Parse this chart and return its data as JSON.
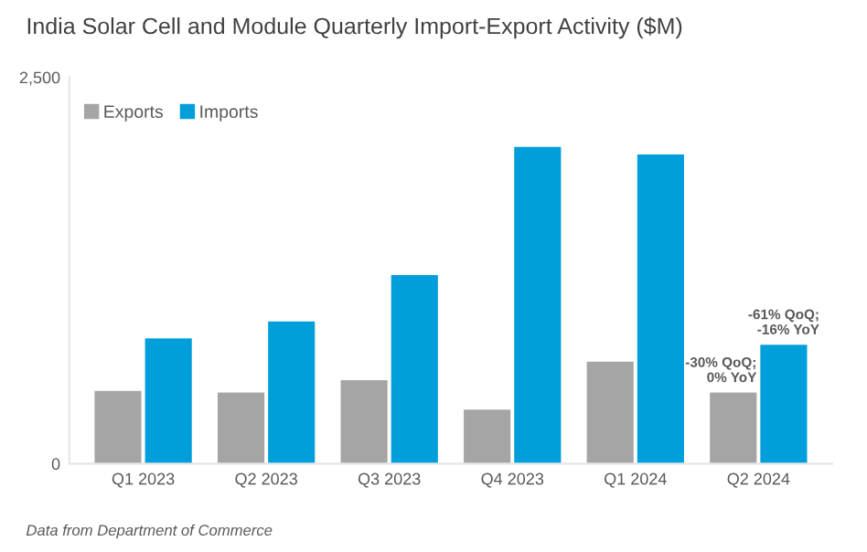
{
  "chart_data": {
    "type": "bar",
    "title": "India Solar Cell and Module Quarterly Import-Export Activity ($M)",
    "categories": [
      "Q1 2023",
      "Q2 2023",
      "Q3 2023",
      "Q4 2023",
      "Q1 2024",
      "Q2 2024"
    ],
    "series": [
      {
        "name": "Exports",
        "color": "#a5a5a5",
        "values": [
          470,
          460,
          540,
          350,
          660,
          460
        ]
      },
      {
        "name": "Imports",
        "color": "#009fdb",
        "values": [
          810,
          920,
          1220,
          2050,
          2000,
          770
        ]
      }
    ],
    "ylim": [
      0,
      2500
    ],
    "yticks": [
      {
        "value": 0,
        "label": "0"
      },
      {
        "value": 2500,
        "label": "2,500"
      }
    ],
    "grid": false,
    "legend": "top left",
    "annotations": [
      {
        "text": "-30% QoQ;\n0% YoY",
        "x": "Q2 2024",
        "y": 460
      },
      {
        "text": "-61% QoQ;\n-16% YoY",
        "x": "Q2 2024",
        "y": 770
      },
      "Data from Department of Commerce"
    ]
  }
}
